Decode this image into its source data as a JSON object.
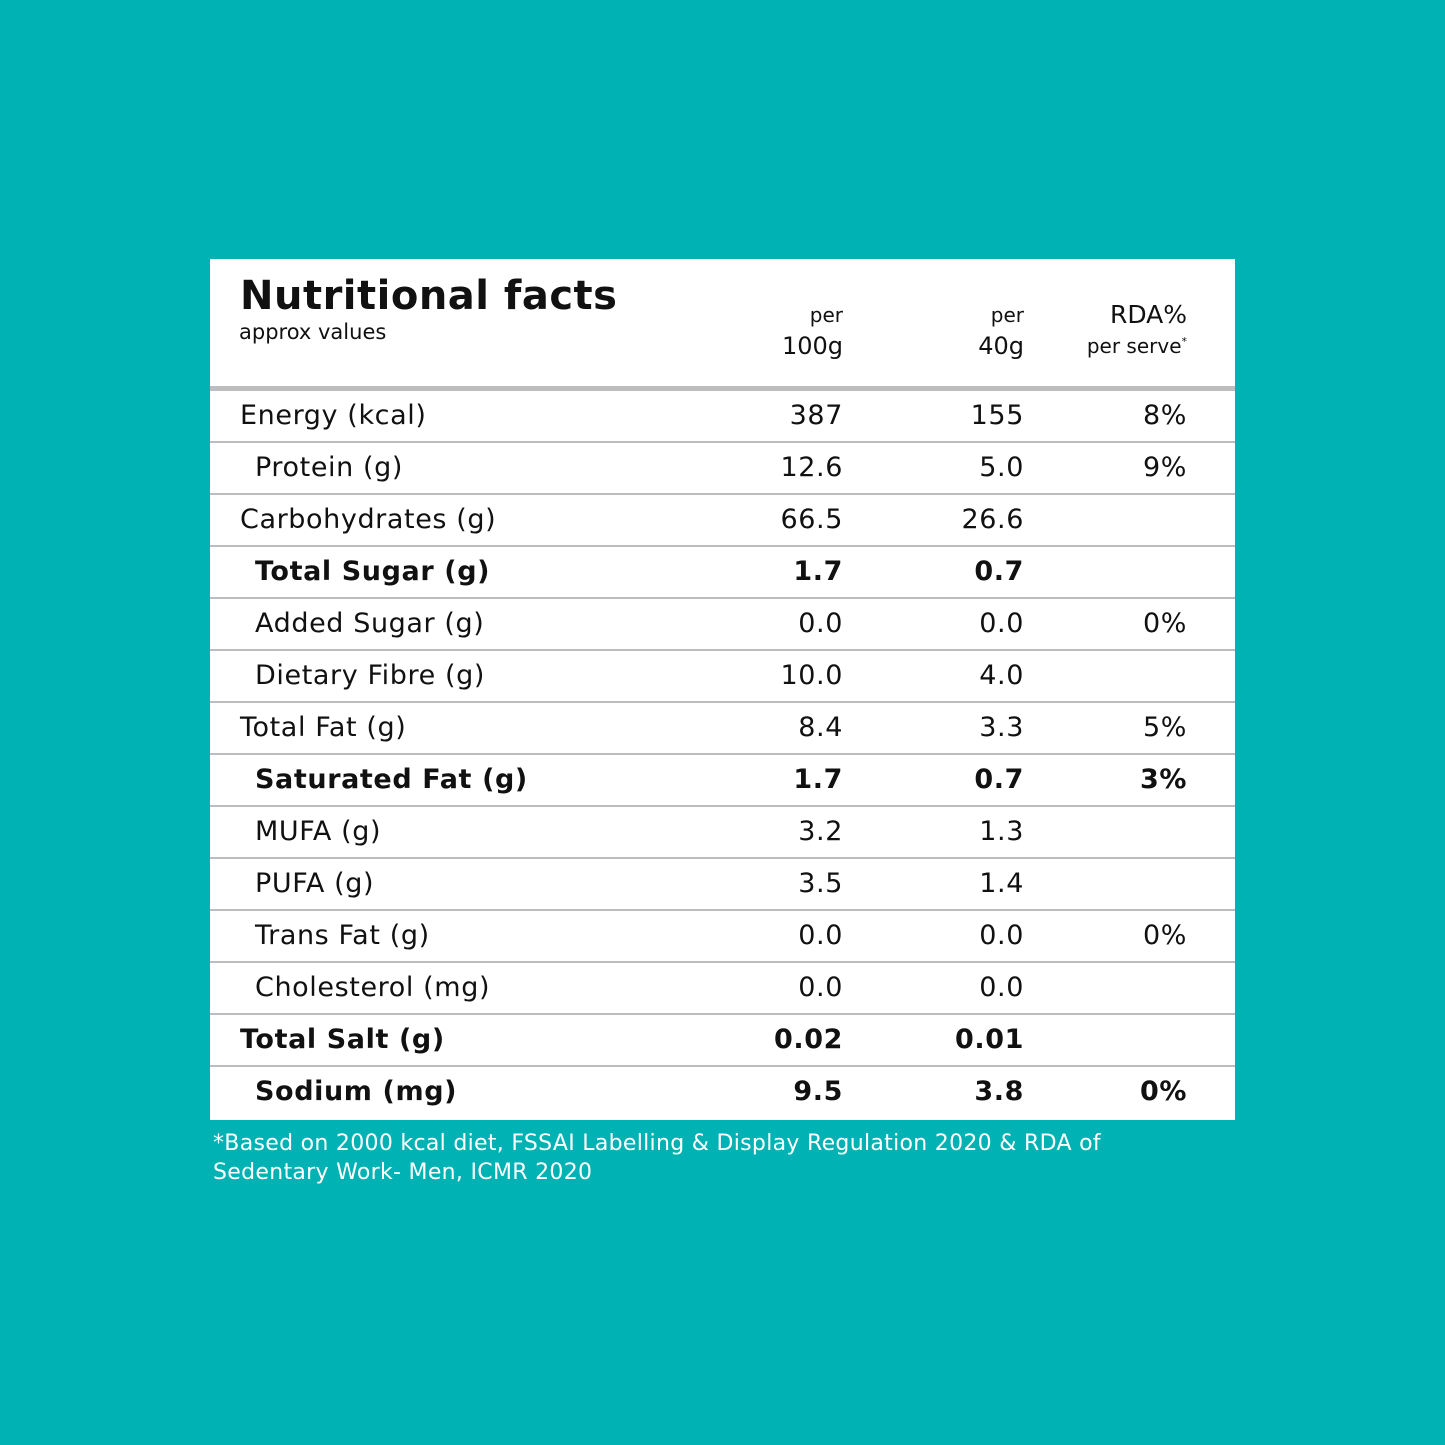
{
  "header": {
    "title": "Nutritional facts",
    "subtitle": "approx values",
    "columns": [
      {
        "top": "per",
        "bottom": "100g"
      },
      {
        "top": "per",
        "bottom": "40g"
      },
      {
        "top": "RDA%",
        "bottom": "per serve",
        "mark": "*"
      }
    ]
  },
  "table": {
    "rows": [
      [
        "Energy (kcal)",
        "387",
        "155",
        "8%"
      ],
      [
        "Protein (g)",
        "12.6",
        "5.0",
        "9%"
      ],
      [
        "Carbohydrates (g)",
        "66.5",
        "26.6"
      ],
      [
        "Total Sugar (g)",
        "1.7",
        "0.7"
      ],
      [
        "Added Sugar (g)",
        "0.0",
        "0.0",
        "0%"
      ],
      [
        "Dietary Fibre (g)",
        "10.0",
        "4.0"
      ],
      [
        "Total Fat (g)",
        "8.4",
        "3.3",
        "5%"
      ],
      [
        "Saturated Fat (g)",
        "1.7",
        "0.7",
        "3%"
      ],
      [
        "MUFA (g)",
        "3.2",
        "1.3"
      ],
      [
        "PUFA (g)",
        "3.5",
        "1.4"
      ],
      [
        "Trans Fat (g)",
        "0.0",
        "0.0",
        "0%"
      ],
      [
        "Cholesterol (mg)",
        "0.0",
        "0.0"
      ],
      [
        "Total Salt (g)",
        "0.02",
        "0.01"
      ],
      [
        "Sodium (mg)",
        "9.5",
        "3.8",
        "0%"
      ]
    ]
  },
  "footnote": {
    "lines": [
      "*Based on 2000 kcal diet, FSSAI Labelling & Display Regulation 2020 & RDA of",
      "Sedentary Work- Men, ICMR 2020"
    ]
  }
}
